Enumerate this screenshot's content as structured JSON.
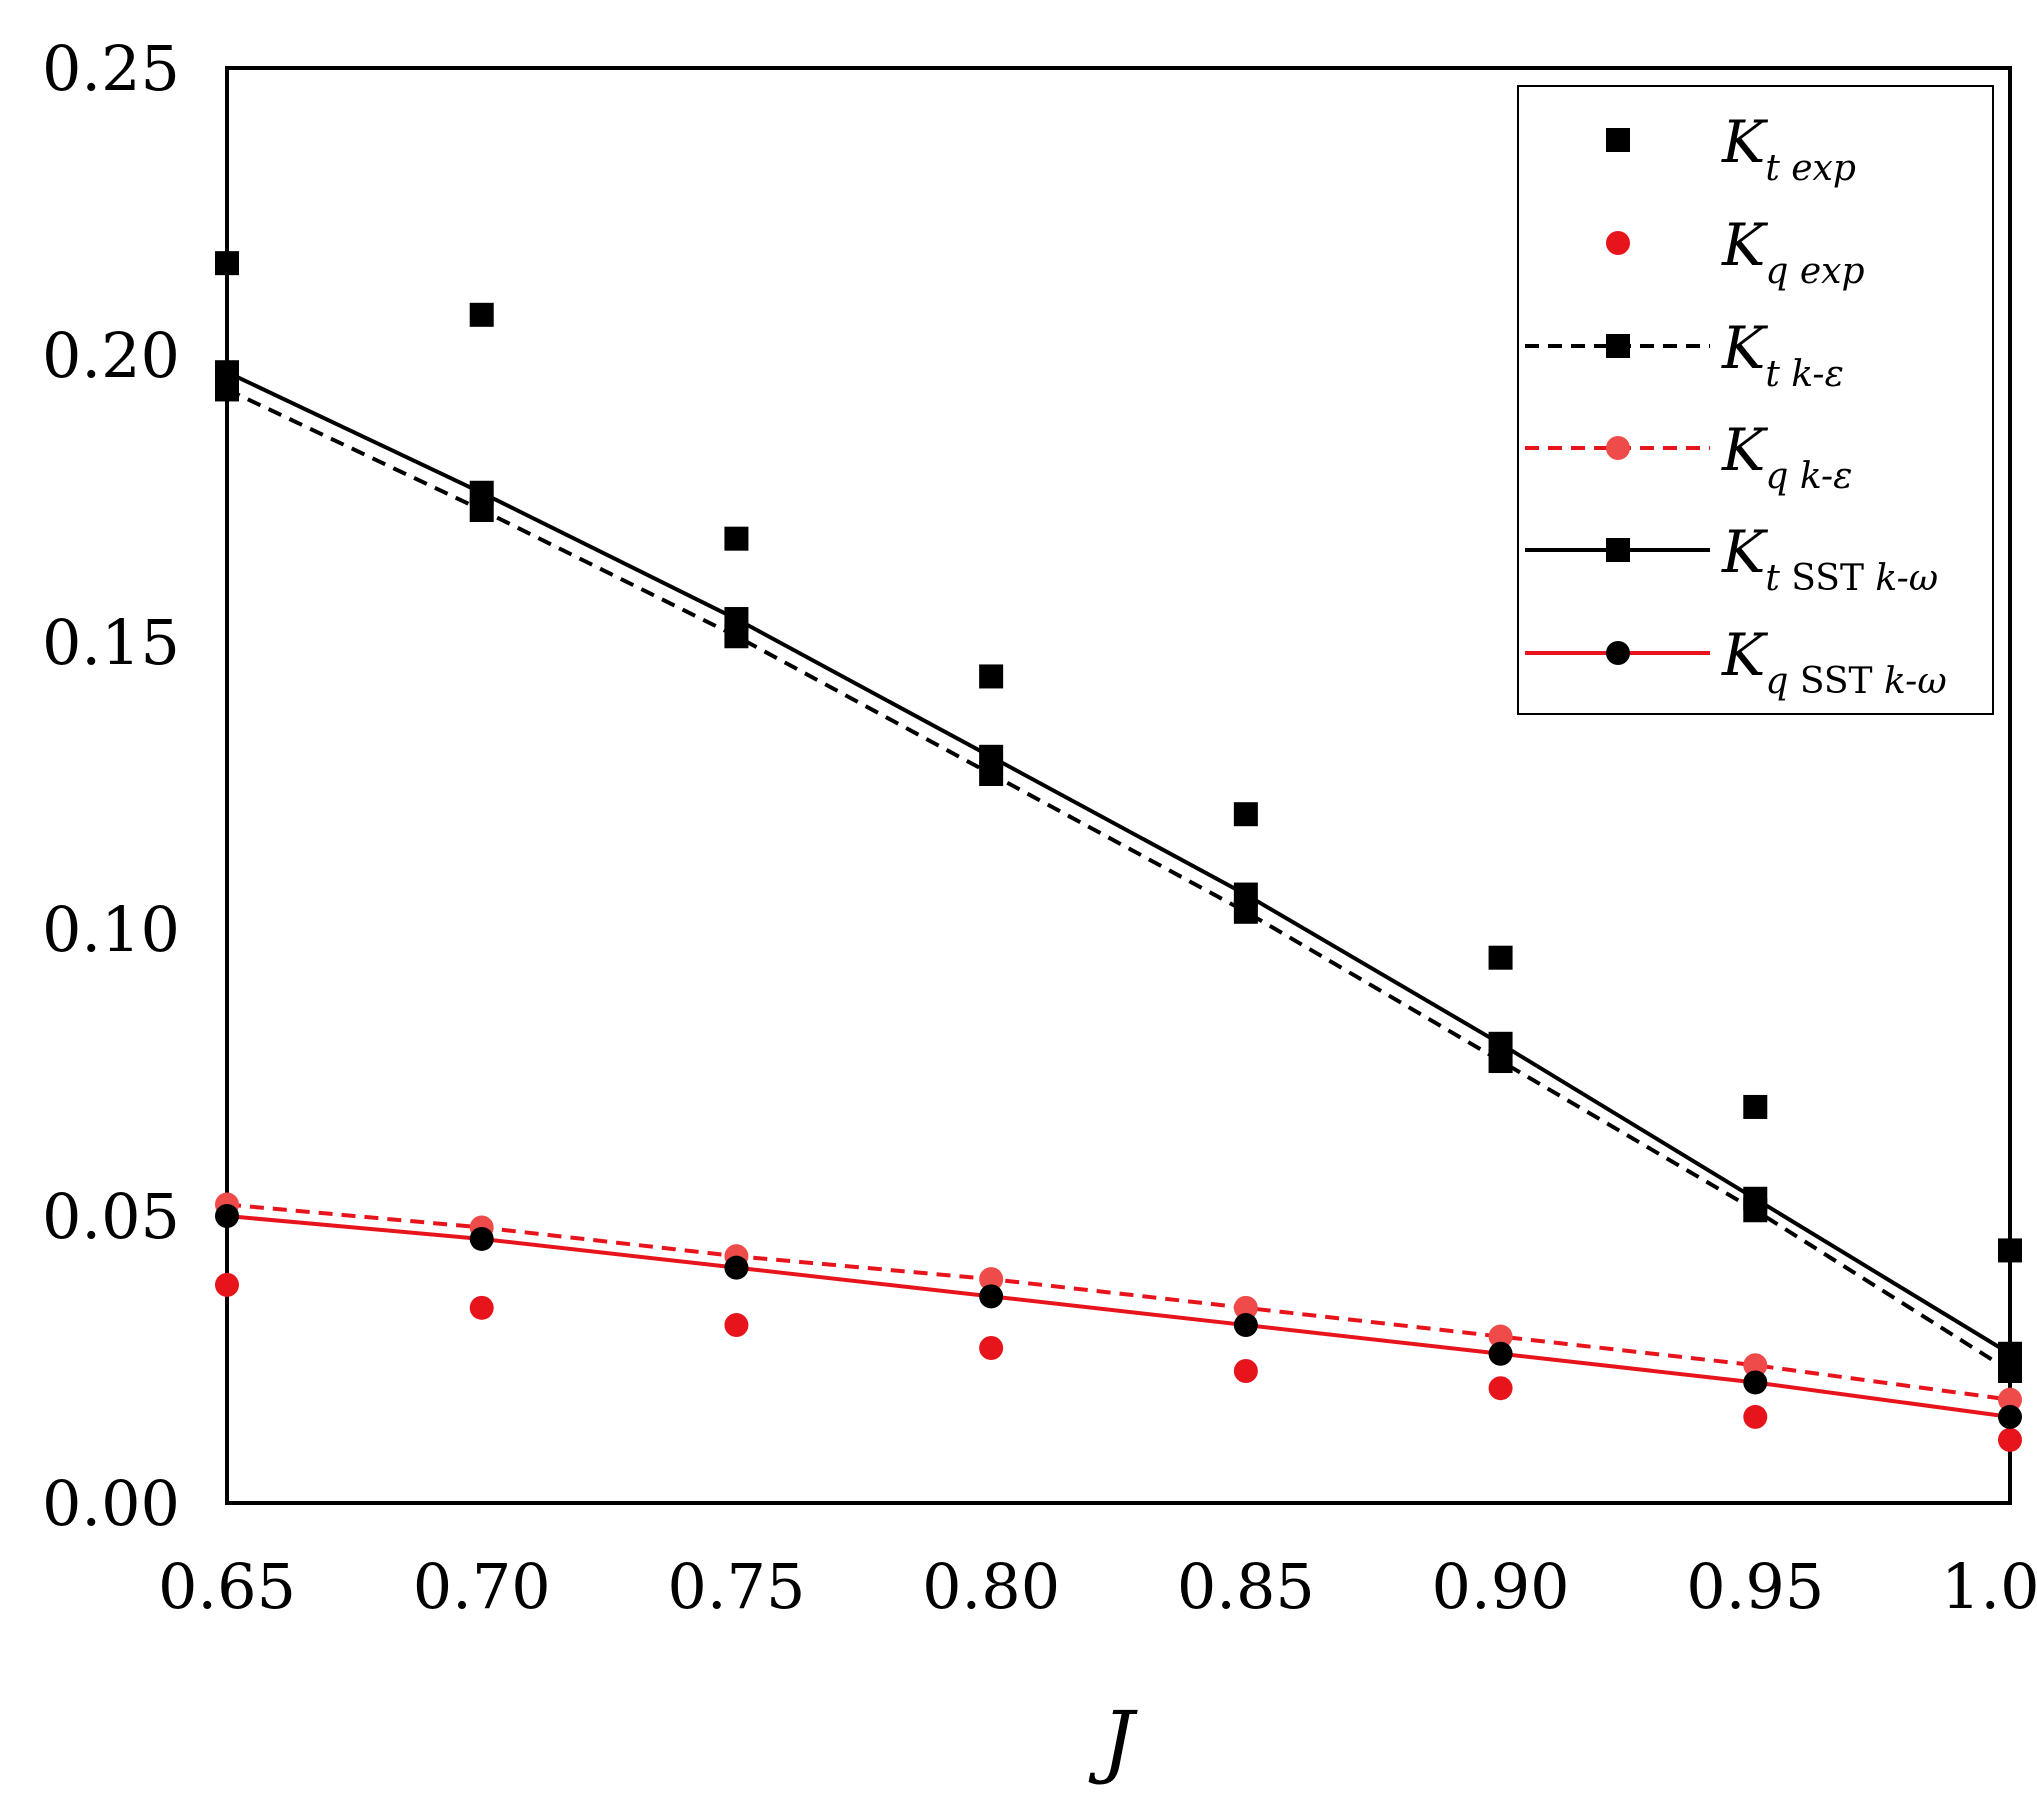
{
  "chart_data": {
    "type": "scatter",
    "title": "",
    "xlabel": "J",
    "ylabel": "",
    "xlim": [
      0.65,
      1.0
    ],
    "ylim": [
      0.0,
      0.25
    ],
    "x_ticks": [
      "0.65",
      "0.70",
      "0.75",
      "0.80",
      "0.85",
      "0.90",
      "0.95",
      "1.00"
    ],
    "y_ticks": [
      "0.00",
      "0.05",
      "0.10",
      "0.15",
      "0.20",
      "0.25"
    ],
    "x": [
      0.65,
      0.7,
      0.75,
      0.8,
      0.85,
      0.9,
      0.95,
      1.0
    ],
    "legend_position": "top-right",
    "series": [
      {
        "name": "Kt exp",
        "label_main": "K",
        "label_sub": "t exp",
        "values": [
          0.216,
          0.207,
          0.168,
          0.144,
          0.12,
          0.095,
          0.069,
          0.044
        ],
        "marker": "square",
        "line": "none",
        "color": "#000000",
        "marker_color": "#000000"
      },
      {
        "name": "Kq exp",
        "label_main": "K",
        "label_sub": "q exp",
        "values": [
          0.038,
          0.034,
          0.031,
          0.027,
          0.023,
          0.02,
          0.015,
          0.011
        ],
        "marker": "circle",
        "line": "none",
        "color": "#e8141c",
        "marker_color": "#e8141c"
      },
      {
        "name": "Kt k-ε",
        "label_main": "K",
        "label_sub": "t k-ε",
        "values": [
          0.194,
          0.173,
          0.151,
          0.127,
          0.103,
          0.077,
          0.051,
          0.023
        ],
        "marker": "square",
        "line": "dashed",
        "color": "#000000",
        "marker_color": "#000000"
      },
      {
        "name": "Kq k-ε",
        "label_main": "K",
        "label_sub": "q k-ε",
        "values": [
          0.052,
          0.048,
          0.043,
          0.039,
          0.034,
          0.029,
          0.024,
          0.018
        ],
        "marker": "circle",
        "line": "dashed",
        "color": "#e8141c",
        "marker_color": "#ef4b4b"
      },
      {
        "name": "Kt SST k-ω",
        "label_main": "K",
        "label_sub_upright": "SST ",
        "label_sub": "t ",
        "label_sub_tail": "k-ω",
        "values": [
          0.197,
          0.176,
          0.154,
          0.13,
          0.106,
          0.08,
          0.053,
          0.026
        ],
        "marker": "square",
        "line": "solid",
        "color": "#000000",
        "marker_color": "#000000"
      },
      {
        "name": "Kq SST k-ω",
        "label_main": "K",
        "label_sub_upright": "SST ",
        "label_sub": "q ",
        "label_sub_tail": "k-ω",
        "values": [
          0.05,
          0.046,
          0.041,
          0.036,
          0.031,
          0.026,
          0.021,
          0.015
        ],
        "marker": "circle",
        "line": "solid",
        "color": "#e8141c",
        "marker_color": "#000000"
      }
    ]
  }
}
